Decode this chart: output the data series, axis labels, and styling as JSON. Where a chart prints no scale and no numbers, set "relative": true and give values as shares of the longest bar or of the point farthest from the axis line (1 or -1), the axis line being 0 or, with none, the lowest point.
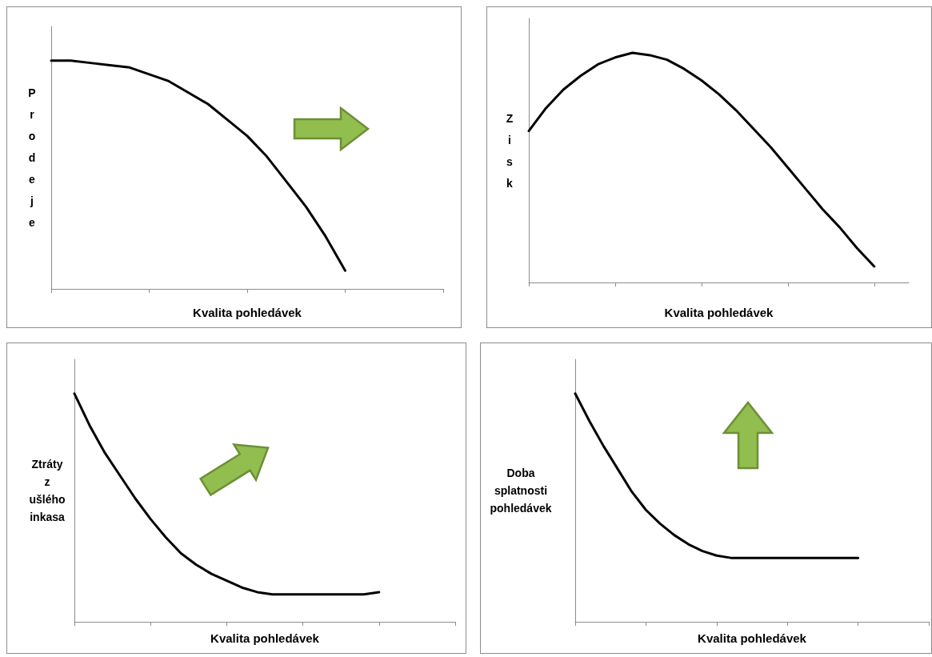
{
  "chart_data": [
    {
      "type": "line",
      "relative": true,
      "xlabel": "Kvalita pohledávek",
      "ylabel": "Prodeje",
      "categories": [
        null,
        null,
        null,
        null,
        null,
        null,
        null,
        null,
        null,
        null,
        null,
        null,
        null,
        null,
        null,
        null,
        null,
        null,
        null,
        null,
        null
      ],
      "series": [
        {
          "color": "#000000",
          "values": [
            1,
            1,
            0.99,
            0.98,
            0.97,
            0.94,
            0.91,
            0.86,
            0.81,
            0.74,
            0.67,
            0.58,
            0.47,
            0.36,
            0.23,
            0.08,
            null,
            null,
            null,
            null,
            null
          ]
        }
      ]
    },
    {
      "type": "line",
      "relative": true,
      "xlabel": "Kvalita pohledávek",
      "ylabel": "Zisk",
      "categories": [
        null,
        null,
        null,
        null,
        null,
        null,
        null,
        null,
        null,
        null,
        null,
        null,
        null,
        null,
        null,
        null,
        null,
        null,
        null,
        null,
        null,
        null,
        null
      ],
      "series": [
        {
          "color": "#000000",
          "values": [
            0.66,
            0.76,
            0.84,
            0.9,
            0.95,
            0.98,
            1,
            0.99,
            0.97,
            0.93,
            0.88,
            0.82,
            0.75,
            0.67,
            0.59,
            0.5,
            0.41,
            0.32,
            0.24,
            0.15,
            0.07,
            null,
            null
          ]
        }
      ]
    },
    {
      "type": "line",
      "relative": true,
      "xlabel": "Kvalita pohledávek",
      "ylabel": "Ztráty z ušlého inkasa",
      "categories": [
        null,
        null,
        null,
        null,
        null,
        null,
        null,
        null,
        null,
        null,
        null,
        null,
        null,
        null,
        null,
        null,
        null,
        null,
        null,
        null,
        null,
        null,
        null,
        null,
        null,
        null
      ],
      "series": [
        {
          "color": "#000000",
          "values": [
            1,
            0.86,
            0.74,
            0.64,
            0.54,
            0.45,
            0.37,
            0.3,
            0.25,
            0.21,
            0.18,
            0.15,
            0.13,
            0.12,
            0.12,
            0.12,
            0.12,
            0.12,
            0.12,
            0.12,
            0.13,
            null,
            null,
            null,
            null,
            null
          ]
        }
      ]
    },
    {
      "type": "line",
      "relative": true,
      "xlabel": "Kvalita pohledávek",
      "ylabel": "Doba splatnosti pohledávek",
      "categories": [
        null,
        null,
        null,
        null,
        null,
        null,
        null,
        null,
        null,
        null,
        null,
        null,
        null,
        null,
        null,
        null,
        null,
        null,
        null,
        null,
        null,
        null,
        null,
        null,
        null,
        null
      ],
      "series": [
        {
          "color": "#000000",
          "values": [
            1,
            0.88,
            0.77,
            0.67,
            0.57,
            0.49,
            0.43,
            0.38,
            0.34,
            0.31,
            0.29,
            0.28,
            0.28,
            0.28,
            0.28,
            0.28,
            0.28,
            0.28,
            0.28,
            0.28,
            0.28,
            null,
            null,
            null,
            null,
            null
          ]
        }
      ]
    }
  ]
}
